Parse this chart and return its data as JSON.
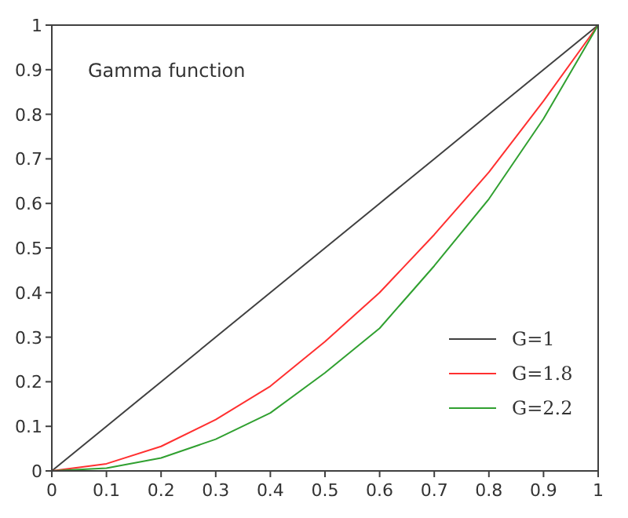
{
  "chart_data": {
    "type": "line",
    "title": "Gamma function",
    "x": [
      0,
      0.1,
      0.2,
      0.3,
      0.4,
      0.5,
      0.6,
      0.7,
      0.8,
      0.9,
      1
    ],
    "series": [
      {
        "name": "G=1",
        "color": "#404040",
        "values": [
          0,
          0.1,
          0.2,
          0.3,
          0.4,
          0.5,
          0.6,
          0.7,
          0.8,
          0.9,
          1
        ]
      },
      {
        "name": "G=1.8",
        "color": "#ff3030",
        "values": [
          0,
          0.016,
          0.055,
          0.115,
          0.19,
          0.29,
          0.4,
          0.53,
          0.67,
          0.83,
          1
        ]
      },
      {
        "name": "G=2.2",
        "color": "#30a030",
        "values": [
          0,
          0.006,
          0.029,
          0.071,
          0.13,
          0.22,
          0.32,
          0.46,
          0.61,
          0.79,
          1
        ]
      }
    ],
    "xlim": [
      0,
      1
    ],
    "ylim": [
      0,
      1
    ],
    "xticks": [
      0,
      0.1,
      0.2,
      0.3,
      0.4,
      0.5,
      0.6,
      0.7,
      0.8,
      0.9,
      1
    ],
    "yticks": [
      0,
      0.1,
      0.2,
      0.3,
      0.4,
      0.5,
      0.6,
      0.7,
      0.8,
      0.9,
      1
    ],
    "grid": false,
    "legend": "bottom right",
    "marker": "none",
    "line_style": "solid"
  }
}
